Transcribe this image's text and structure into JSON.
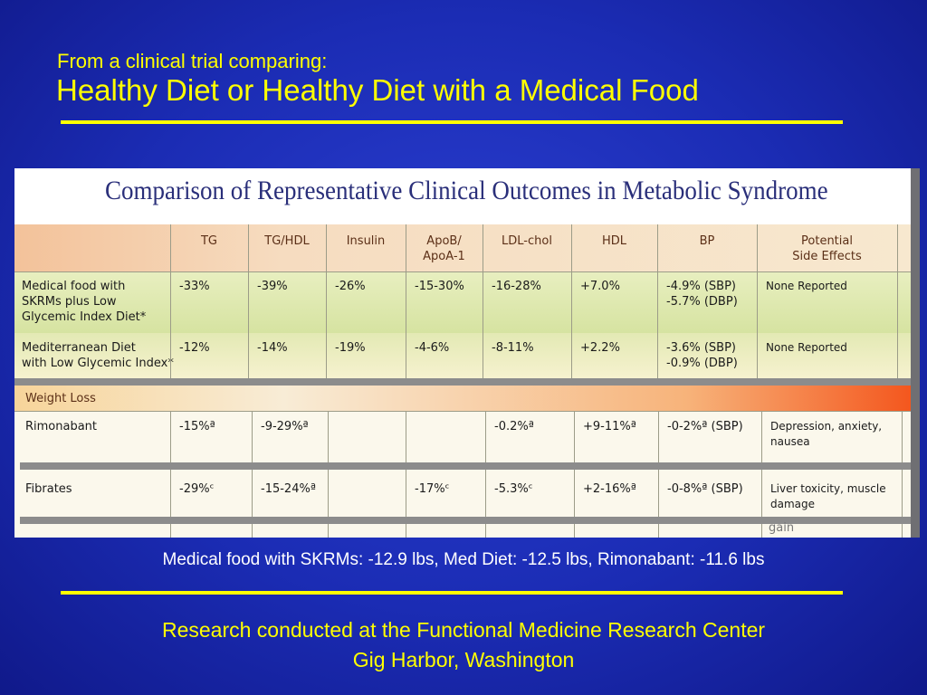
{
  "slide": {
    "kicker": "From a clinical trial comparing:",
    "headline": "Healthy Diet or Healthy Diet with a Medical Food",
    "summary": "Medical food with SKRMs: -12.9 lbs,  Med Diet: -12.5 lbs,  Rimonabant: -11.6 lbs",
    "credit_line1": "Research conducted at the Functional Medicine Research Center",
    "credit_line2": "Gig Harbor, Washington",
    "colors": {
      "background": "#1b2cb4",
      "accent": "#ffff00",
      "text": "#ffffff"
    }
  },
  "table": {
    "title": "Comparison of Representative Clinical Outcomes in Metabolic Syndrome",
    "columns": [
      "TG",
      "TG/HDL",
      "Insulin",
      "ApoB/\nApoA-1",
      "LDL-chol",
      "HDL",
      "BP",
      "Potential\nSide Effects"
    ],
    "rows": [
      {
        "label": "Medical food with\nSKRMs plus Low\nGlycemic Index Diet*",
        "values": [
          "-33%",
          "-39%",
          "-26%",
          "-15-30%",
          "-16-28%",
          "+7.0%",
          "-4.9% (SBP)\n-5.7% (DBP)",
          "None Reported"
        ]
      },
      {
        "label": "Mediterranean Diet\nwith Low Glycemic Index*",
        "values": [
          "-12%",
          "-14%",
          "-19%",
          "-4-6%",
          "-8-11%",
          "+2.2%",
          "-3.6% (SBP)\n-0.9% (DBP)",
          "None Reported"
        ]
      }
    ],
    "section_label": "Weight Loss",
    "drug_rows": [
      {
        "label": "Rimonabant",
        "values": [
          "-15%ª",
          "-9-29%ª",
          "",
          "",
          "-0.2%ª",
          "+9-11%ª",
          "-0-2%ª (SBP)",
          "Depression, anxiety,\nnausea"
        ]
      },
      {
        "label": "Fibrates",
        "values": [
          "-29%ᶜ",
          "-15-24%ª",
          "",
          "-17%ᶜ",
          "-5.3%ᶜ",
          "+2-16%ª",
          "-0-8%ª (SBP)",
          "Liver toxicity, muscle\ndamage"
        ]
      }
    ],
    "cutoff_text": "gain"
  }
}
